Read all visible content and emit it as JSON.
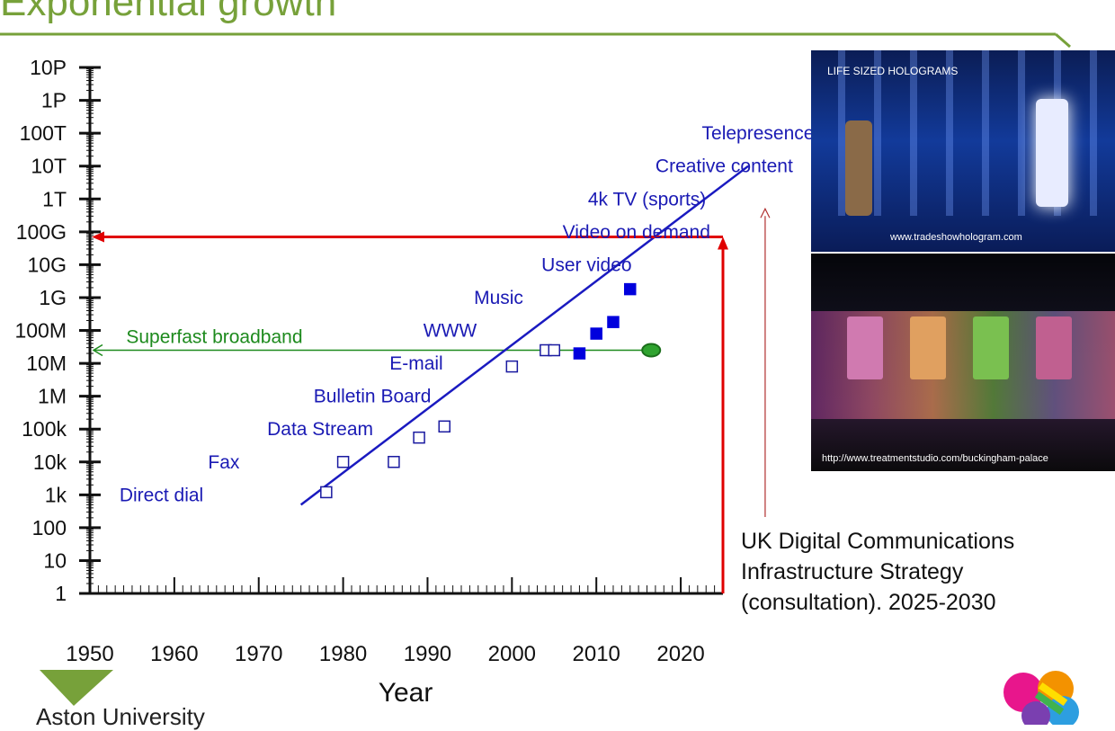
{
  "slide": {
    "title": "Exponential growth",
    "accent_color": "#77a13a"
  },
  "chart_data": {
    "type": "scatter",
    "title": "",
    "xlabel": "Year",
    "ylabel": "",
    "xlim": [
      1950,
      2025
    ],
    "y_scale": "log",
    "ylim": [
      1,
      1e+16
    ],
    "x_ticks": [
      1950,
      1960,
      1970,
      1980,
      1990,
      2000,
      2010,
      2020
    ],
    "y_ticks": [
      {
        "label": "1",
        "value": 1
      },
      {
        "label": "10",
        "value": 10
      },
      {
        "label": "100",
        "value": 100
      },
      {
        "label": "1k",
        "value": 1000.0
      },
      {
        "label": "10k",
        "value": 10000.0
      },
      {
        "label": "100k",
        "value": 100000.0
      },
      {
        "label": "1M",
        "value": 1000000.0
      },
      {
        "label": "10M",
        "value": 10000000.0
      },
      {
        "label": "100M",
        "value": 100000000.0
      },
      {
        "label": "1G",
        "value": 1000000000.0
      },
      {
        "label": "10G",
        "value": 10000000000.0
      },
      {
        "label": "100G",
        "value": 100000000000.0
      },
      {
        "label": "1T",
        "value": 1000000000000.0
      },
      {
        "label": "10T",
        "value": 10000000000000.0
      },
      {
        "label": "100T",
        "value": 100000000000000.0
      },
      {
        "label": "1P",
        "value": 1000000000000000.0
      },
      {
        "label": "10P",
        "value": 1e+16
      }
    ],
    "series": [
      {
        "marker": "open-square",
        "color": "#1a1aa0",
        "points": [
          {
            "x": 1978,
            "y": 1200
          },
          {
            "x": 1980,
            "y": 10000
          },
          {
            "x": 1986,
            "y": 10000
          },
          {
            "x": 1989,
            "y": 55000
          },
          {
            "x": 1992,
            "y": 120000
          },
          {
            "x": 2000,
            "y": 8000000
          },
          {
            "x": 2004,
            "y": 25000000
          },
          {
            "x": 2005,
            "y": 25000000
          }
        ]
      },
      {
        "marker": "filled-square",
        "color": "#0000dd",
        "points": [
          {
            "x": 2008,
            "y": 20000000
          },
          {
            "x": 2010,
            "y": 80000000
          },
          {
            "x": 2012,
            "y": 180000000
          },
          {
            "x": 2014,
            "y": 1800000000
          }
        ]
      }
    ],
    "trend_line": {
      "x1": 1975,
      "y1": 500,
      "x2": 2028,
      "y2": 10000000000000.0,
      "color": "#1a1ac0"
    },
    "broadband_line": {
      "label": "Superfast broadband",
      "y": 25000000,
      "x_start": 1950,
      "x_end": 2016.5,
      "color": "#1d8a1d"
    },
    "target_lines": {
      "x": 2025,
      "y": 70000000000,
      "color": "#e00000"
    },
    "strategy_marker": {
      "x": 2030,
      "y": 500000000000.0,
      "color": "#b03030"
    },
    "annotations": [
      {
        "text": "Direct dial",
        "x": 1953.5,
        "y": 1000
      },
      {
        "text": "Fax",
        "x": 1964,
        "y": 10000
      },
      {
        "text": "Data Stream",
        "x": 1971,
        "y": 100000
      },
      {
        "text": "Bulletin Board",
        "x": 1976.5,
        "y": 1000000
      },
      {
        "text": "E-mail",
        "x": 1985.5,
        "y": 10000000
      },
      {
        "text": "WWW",
        "x": 1989.5,
        "y": 100000000
      },
      {
        "text": "Music",
        "x": 1995.5,
        "y": 1000000000
      },
      {
        "text": "User video",
        "x": 2003.5,
        "y": 10000000000
      },
      {
        "text": "Video on demand",
        "x": 2006,
        "y": 100000000000
      },
      {
        "text": "4k TV (sports)",
        "x": 2009,
        "y": 1000000000000
      },
      {
        "text": "Creative content",
        "x": 2017,
        "y": 10000000000000
      },
      {
        "text": "Telepresence",
        "x": 2022.5,
        "y": 100000000000000
      }
    ],
    "annotation_color": "#1a1ab4"
  },
  "photos": {
    "top": {
      "heading": "LIFE SIZED HOLOGRAMS",
      "credit": "www.tradeshowhologram.com"
    },
    "bottom": {
      "credit": "http://www.treatmentstudio.com/buckingham-palace"
    }
  },
  "strategy_note": "UK Digital Communications\nInfrastructure Strategy\n(consultation). 2025-2030",
  "footer": {
    "brand": "Aston University"
  }
}
